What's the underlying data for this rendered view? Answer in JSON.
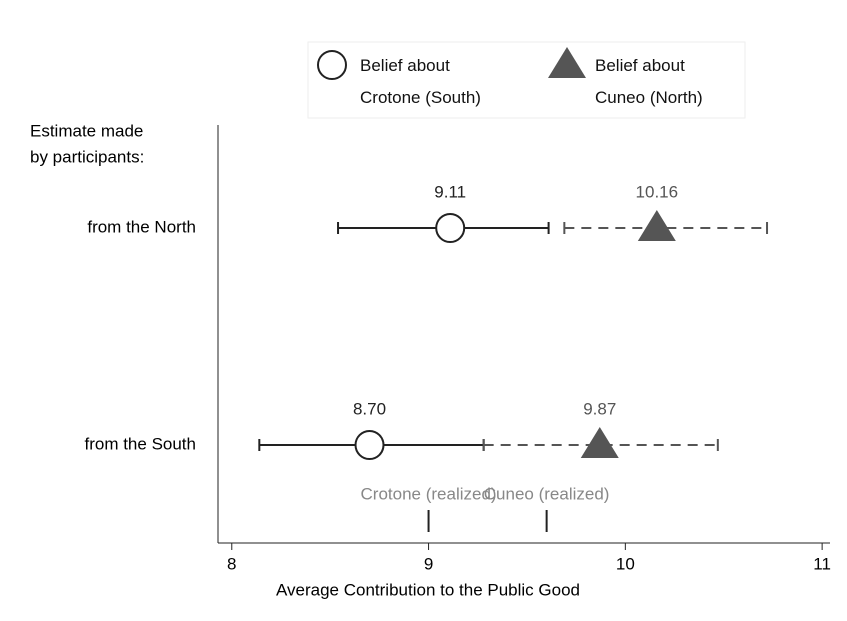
{
  "chart_data": {
    "type": "dot-errorbar",
    "ylabel": [
      "Estimate made",
      "by participants:"
    ],
    "xlabel": "Average Contribution to the Public Good",
    "categories": [
      "from the North",
      "from the South"
    ],
    "xlim": [
      7.93,
      11.04
    ],
    "xticks": [
      8,
      9,
      10,
      11
    ],
    "series": [
      {
        "name": "Belief about Crotone (South)",
        "color": "#222222",
        "marker": "circle",
        "dashed": false,
        "values": [
          9.11,
          8.7
        ],
        "value_labels": [
          "9.11",
          "8.70"
        ],
        "low": [
          8.54,
          8.14
        ],
        "high": [
          9.61,
          9.28
        ]
      },
      {
        "name": "Belief about Cuneo (North)",
        "color": "#555555",
        "marker": "triangle",
        "dashed": true,
        "values": [
          10.16,
          9.87
        ],
        "value_labels": [
          "10.16",
          "9.87"
        ],
        "low": [
          9.69,
          9.28
        ],
        "high": [
          10.72,
          10.47
        ]
      }
    ],
    "reference_lines": [
      {
        "label": "Crotone (realized)",
        "value": 9,
        "color": "#888888"
      },
      {
        "label": "Cuneo (realized)",
        "value": 9.6,
        "color": "#888888"
      }
    ]
  }
}
